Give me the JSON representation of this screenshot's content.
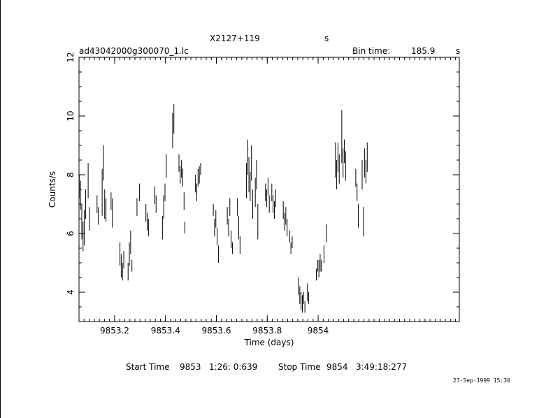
{
  "header": {
    "source": "X2127+119",
    "source_suffix": "s",
    "filename": "ad43042000g300070_1.lc",
    "bin_label": "Bin time:",
    "bin_value": "185.9",
    "bin_unit": "s"
  },
  "footer": {
    "start_label": "Start Time",
    "start_value": "9853   1:26: 0:639",
    "stop_label": "Stop Time",
    "stop_value": "9854   3:49:18:277",
    "stamp": "27-Sep-1999 15:30"
  },
  "chart_data": {
    "type": "scatter",
    "title": "X2127+119",
    "xlabel": "Time (days)",
    "ylabel": "Counts/s",
    "xlim": [
      9853.06,
      9854.555
    ],
    "ylim": [
      3,
      12
    ],
    "x_ticks": [
      9853.2,
      9853.4,
      9853.6,
      9853.8,
      9854
    ],
    "x_tick_labels": [
      "9853.2",
      "9853.4",
      "9853.6",
      "9853.8",
      "9854"
    ],
    "y_ticks": [
      4,
      6,
      8,
      10,
      12
    ],
    "y_tick_labels": [
      "4",
      "6",
      "8",
      "10",
      "12"
    ],
    "grid": false,
    "error_bars": "vertical",
    "points": [
      [
        9853.061,
        7.6,
        0.4
      ],
      [
        9853.066,
        7.3,
        0.5
      ],
      [
        9853.071,
        6.4,
        0.6
      ],
      [
        9853.076,
        5.9,
        0.5
      ],
      [
        9853.081,
        6.2,
        0.6
      ],
      [
        9853.086,
        7.0,
        0.5
      ],
      [
        9853.096,
        7.8,
        0.6
      ],
      [
        9853.101,
        6.5,
        0.4
      ],
      [
        9853.131,
        7.0,
        0.3
      ],
      [
        9853.136,
        6.6,
        0.3
      ],
      [
        9853.151,
        7.4,
        0.8
      ],
      [
        9853.156,
        8.4,
        0.6
      ],
      [
        9853.161,
        7.0,
        0.5
      ],
      [
        9853.166,
        6.8,
        0.4
      ],
      [
        9853.186,
        7.1,
        0.3
      ],
      [
        9853.191,
        6.7,
        0.5
      ],
      [
        9853.221,
        5.3,
        0.4
      ],
      [
        9853.226,
        4.9,
        0.4
      ],
      [
        9853.231,
        4.7,
        0.3
      ],
      [
        9853.236,
        5.1,
        0.3
      ],
      [
        9853.253,
        4.7,
        0.3
      ],
      [
        9853.258,
        5.3,
        0.4
      ],
      [
        9853.263,
        5.7,
        0.4
      ],
      [
        9853.268,
        4.9,
        0.2
      ],
      [
        9853.288,
        6.9,
        0.3
      ],
      [
        9853.298,
        7.4,
        0.3
      ],
      [
        9853.323,
        6.7,
        0.3
      ],
      [
        9853.328,
        6.4,
        0.3
      ],
      [
        9853.333,
        6.2,
        0.3
      ],
      [
        9853.358,
        7.3,
        0.3
      ],
      [
        9853.363,
        7.0,
        0.3
      ],
      [
        9853.388,
        6.2,
        0.4
      ],
      [
        9853.393,
        6.9,
        0.4
      ],
      [
        9853.398,
        7.4,
        0.3
      ],
      [
        9853.403,
        8.3,
        0.4
      ],
      [
        9853.428,
        9.5,
        0.6
      ],
      [
        9853.433,
        9.9,
        0.5
      ],
      [
        9853.453,
        8.4,
        0.3
      ],
      [
        9853.458,
        8.0,
        0.3
      ],
      [
        9853.463,
        8.2,
        0.3
      ],
      [
        9853.468,
        7.9,
        0.3
      ],
      [
        9853.473,
        7.1,
        0.3
      ],
      [
        9853.476,
        6.2,
        0.2
      ],
      [
        9853.518,
        7.7,
        0.3
      ],
      [
        9853.523,
        7.4,
        0.3
      ],
      [
        9853.528,
        7.9,
        0.3
      ],
      [
        9853.533,
        8.0,
        0.3
      ],
      [
        9853.538,
        8.2,
        0.2
      ],
      [
        9853.588,
        6.8,
        0.2
      ],
      [
        9853.593,
        6.2,
        0.3
      ],
      [
        9853.598,
        6.5,
        0.3
      ],
      [
        9853.603,
        5.9,
        0.3
      ],
      [
        9853.608,
        5.3,
        0.3
      ],
      [
        9853.643,
        6.6,
        0.3
      ],
      [
        9853.648,
        6.2,
        0.3
      ],
      [
        9853.653,
        6.9,
        0.3
      ],
      [
        9853.658,
        5.8,
        0.3
      ],
      [
        9853.663,
        5.5,
        0.2
      ],
      [
        9853.683,
        6.9,
        0.3
      ],
      [
        9853.688,
        6.2,
        0.4
      ],
      [
        9853.693,
        5.6,
        0.3
      ],
      [
        9853.718,
        7.8,
        0.6
      ],
      [
        9853.723,
        8.6,
        0.6
      ],
      [
        9853.728,
        8.0,
        0.6
      ],
      [
        9853.733,
        7.6,
        0.5
      ],
      [
        9853.738,
        8.4,
        0.6
      ],
      [
        9853.743,
        7.0,
        0.5
      ],
      [
        9853.753,
        7.4,
        0.5
      ],
      [
        9853.758,
        8.0,
        0.5
      ],
      [
        9853.763,
        6.4,
        0.6
      ],
      [
        9853.793,
        7.4,
        0.3
      ],
      [
        9853.798,
        7.2,
        0.3
      ],
      [
        9853.803,
        7.6,
        0.3
      ],
      [
        9853.808,
        7.0,
        0.3
      ],
      [
        9853.818,
        7.4,
        0.3
      ],
      [
        9853.823,
        7.0,
        0.3
      ],
      [
        9853.828,
        6.8,
        0.3
      ],
      [
        9853.833,
        7.2,
        0.3
      ],
      [
        9853.863,
        6.8,
        0.3
      ],
      [
        9853.868,
        6.4,
        0.3
      ],
      [
        9853.873,
        6.6,
        0.3
      ],
      [
        9853.878,
        6.2,
        0.3
      ],
      [
        9853.888,
        5.9,
        0.2
      ],
      [
        9853.893,
        5.5,
        0.2
      ],
      [
        9853.898,
        5.7,
        0.2
      ],
      [
        9853.923,
        4.2,
        0.3
      ],
      [
        9853.928,
        3.9,
        0.3
      ],
      [
        9853.933,
        3.7,
        0.3
      ],
      [
        9853.938,
        3.6,
        0.3
      ],
      [
        9853.943,
        3.8,
        0.2
      ],
      [
        9853.948,
        3.5,
        0.2
      ],
      [
        9853.958,
        4.0,
        0.3
      ],
      [
        9853.963,
        3.8,
        0.2
      ],
      [
        9853.993,
        4.6,
        0.2
      ],
      [
        9853.998,
        4.9,
        0.2
      ],
      [
        9854.003,
        4.8,
        0.3
      ],
      [
        9854.008,
        5.0,
        0.3
      ],
      [
        9854.013,
        4.9,
        0.2
      ],
      [
        9854.023,
        5.3,
        0.3
      ],
      [
        9854.033,
        6.0,
        0.3
      ],
      [
        9854.068,
        8.5,
        0.6
      ],
      [
        9854.073,
        8.0,
        0.5
      ],
      [
        9854.078,
        8.6,
        0.5
      ],
      [
        9854.083,
        8.2,
        0.5
      ],
      [
        9854.093,
        9.3,
        0.9
      ],
      [
        9854.098,
        8.4,
        0.5
      ],
      [
        9854.103,
        8.8,
        0.4
      ],
      [
        9854.108,
        8.3,
        0.5
      ],
      [
        9854.148,
        7.9,
        0.3
      ],
      [
        9854.153,
        7.4,
        0.3
      ],
      [
        9854.158,
        6.6,
        0.4
      ],
      [
        9854.173,
        8.0,
        0.5
      ],
      [
        9854.178,
        6.4,
        0.5
      ],
      [
        9854.183,
        8.4,
        0.5
      ],
      [
        9854.188,
        8.1,
        0.4
      ],
      [
        9854.193,
        8.6,
        0.5
      ]
    ]
  }
}
